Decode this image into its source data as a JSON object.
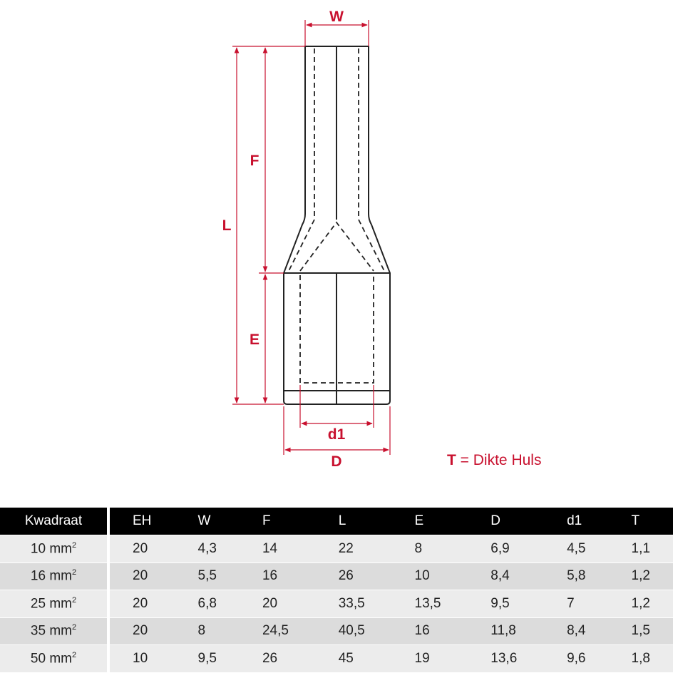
{
  "drawing": {
    "labels": {
      "W": "W",
      "F": "F",
      "L": "L",
      "E": "E",
      "d1": "d1",
      "D": "D"
    },
    "note": {
      "symbol": "T",
      "text": "= Dikte Huls"
    },
    "colors": {
      "dimension": "#c8102e",
      "outline": "#222222"
    }
  },
  "table": {
    "headers": [
      "Kwadraat",
      "EH",
      "W",
      "F",
      "L",
      "E",
      "D",
      "d1",
      "T"
    ],
    "unit": "mm",
    "unit_sup": "2",
    "rows": [
      {
        "size": "10",
        "values": [
          "20",
          "4,3",
          "14",
          "22",
          "8",
          "6,9",
          "4,5",
          "1,1"
        ]
      },
      {
        "size": "16",
        "values": [
          "20",
          "5,5",
          "16",
          "26",
          "10",
          "8,4",
          "5,8",
          "1,2"
        ]
      },
      {
        "size": "25",
        "values": [
          "20",
          "6,8",
          "20",
          "33,5",
          "13,5",
          "9,5",
          "7",
          "1,2"
        ]
      },
      {
        "size": "35",
        "values": [
          "20",
          "8",
          "24,5",
          "40,5",
          "16",
          "11,8",
          "8,4",
          "1,5"
        ]
      },
      {
        "size": "50",
        "values": [
          "10",
          "9,5",
          "26",
          "45",
          "19",
          "13,6",
          "9,6",
          "1,8"
        ]
      }
    ]
  }
}
